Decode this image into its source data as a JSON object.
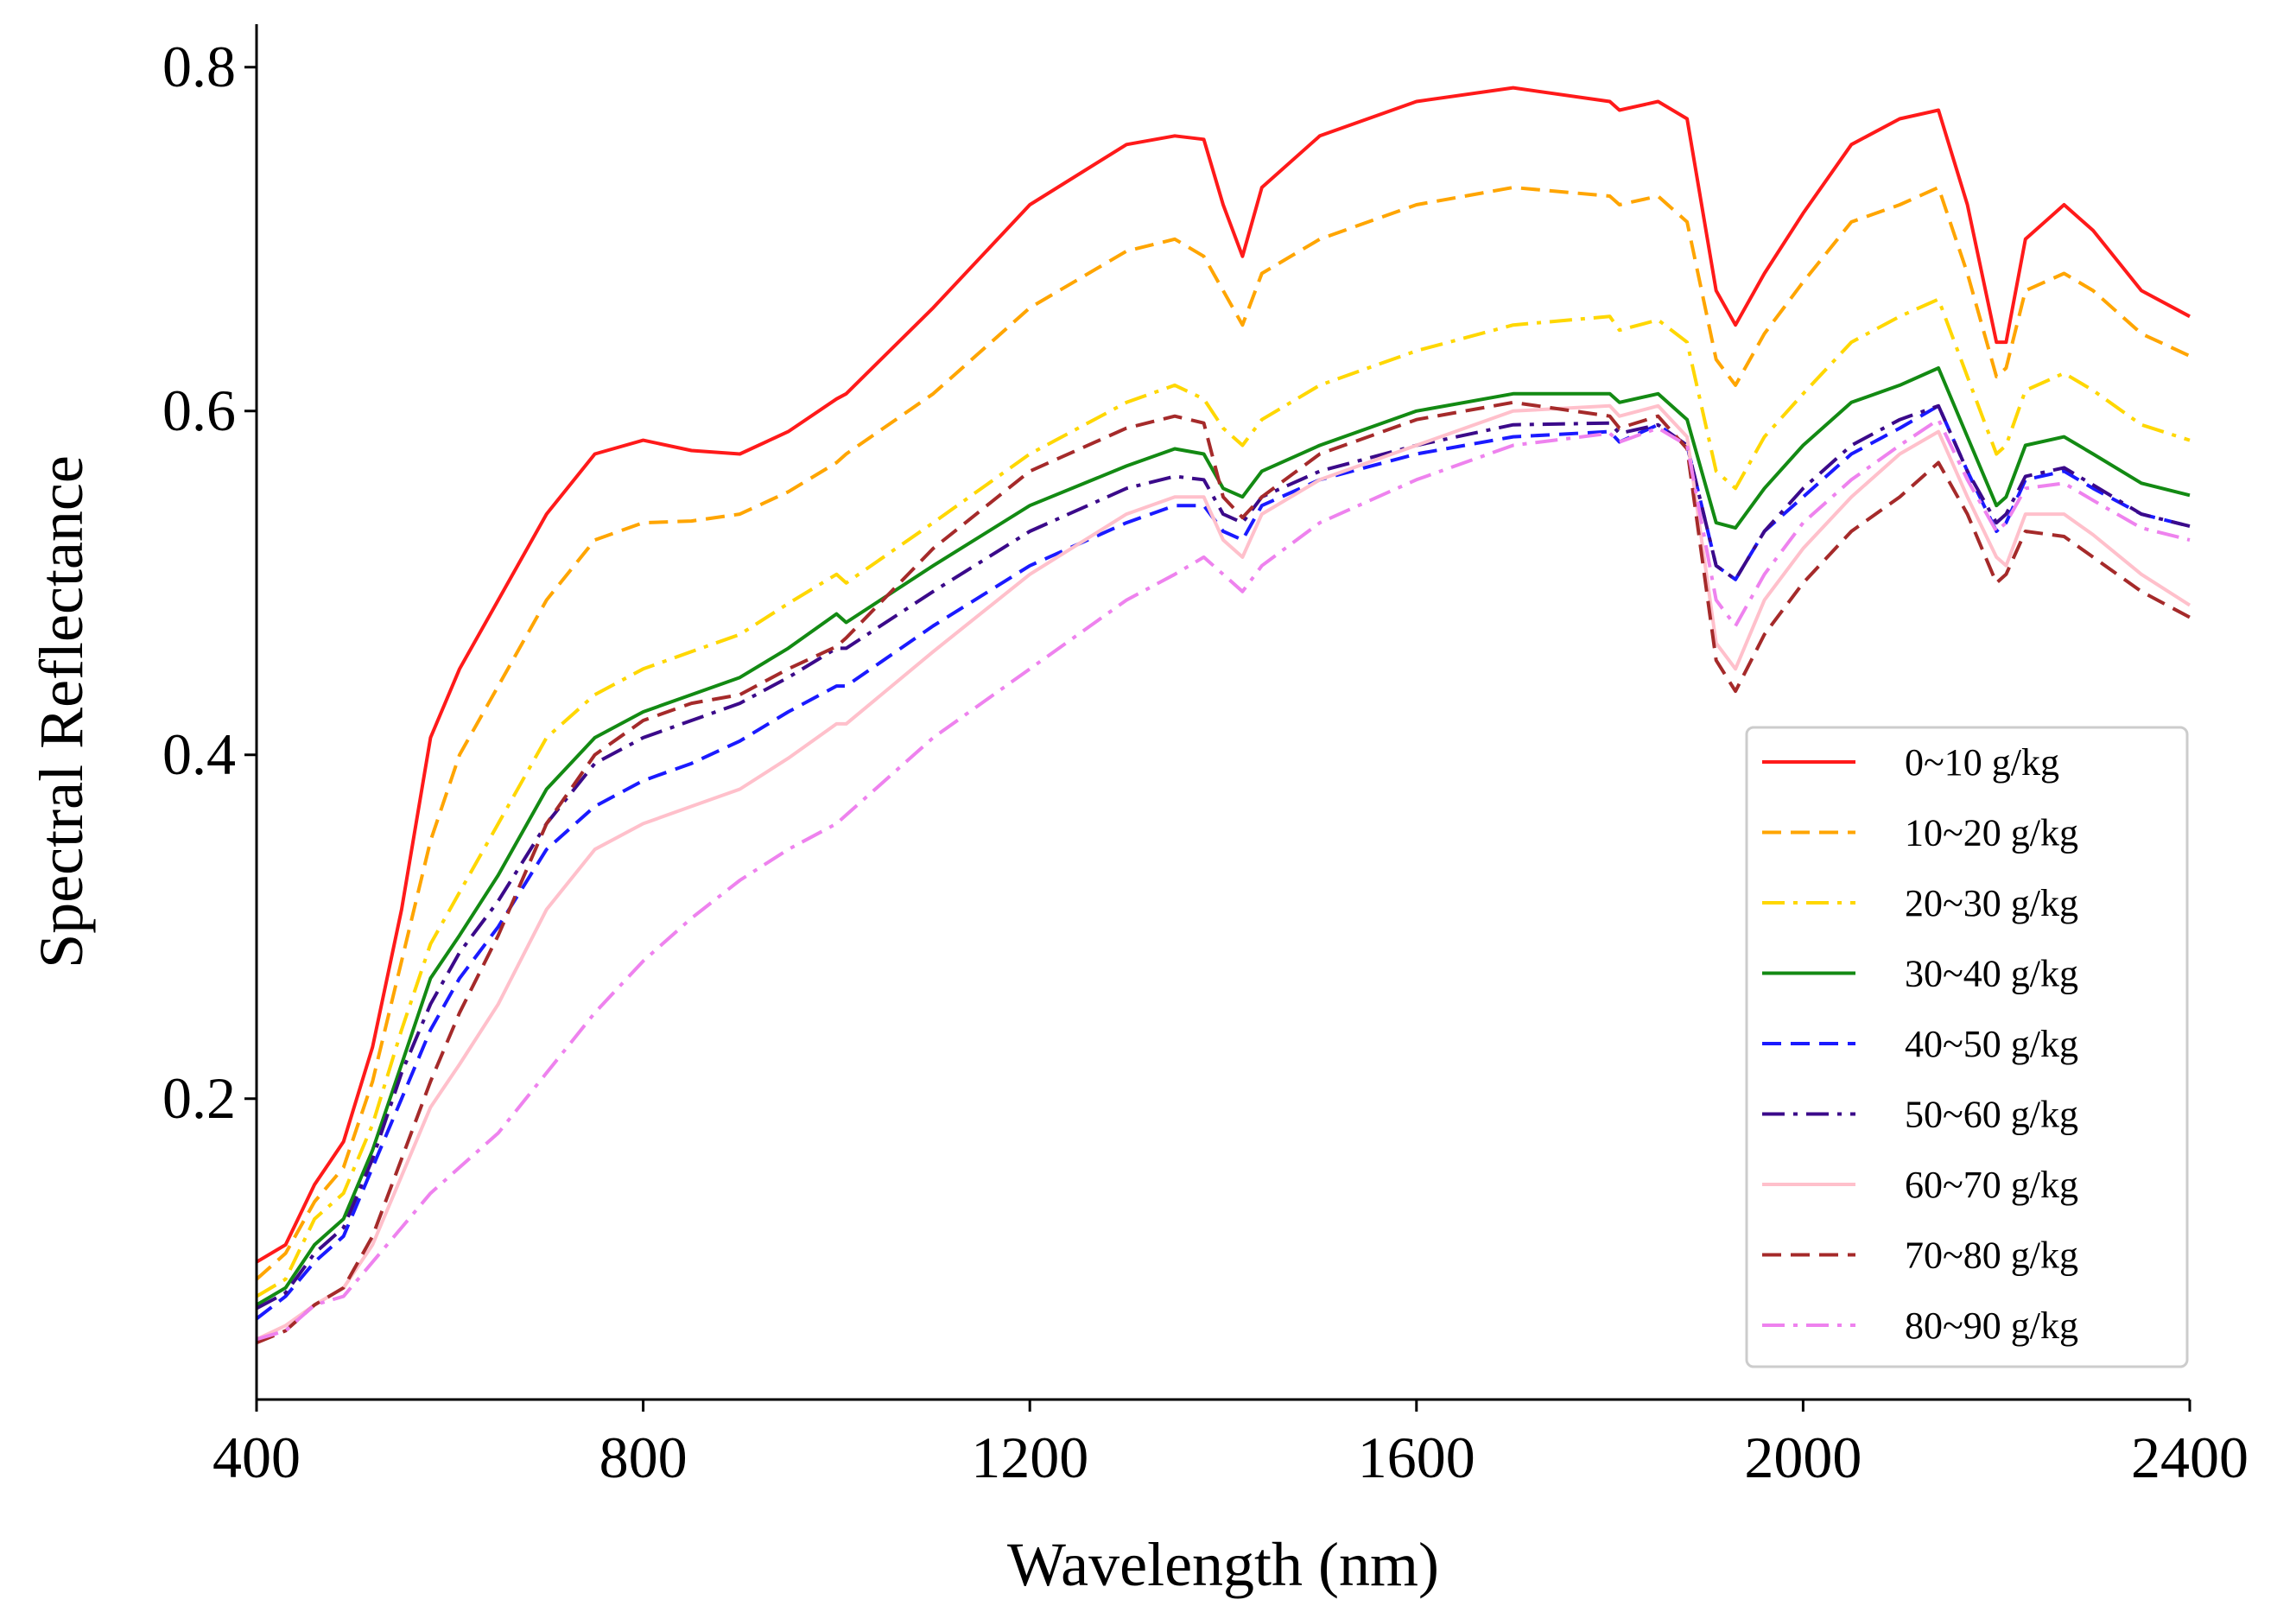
{
  "chart_data": {
    "type": "line",
    "title": "",
    "xlabel": "Wavelength (nm)",
    "ylabel": "Spectral Reflectance",
    "xlim": [
      400,
      2400
    ],
    "ylim": [
      0.025,
      0.825
    ],
    "xticks": [
      400,
      800,
      1200,
      1600,
      2000,
      2400
    ],
    "xtick_labels": [
      "400",
      "800",
      "1200",
      "1600",
      "2000",
      "2400"
    ],
    "yticks": [
      0.2,
      0.4,
      0.6,
      0.8
    ],
    "ytick_labels": [
      "0.2",
      "0.4",
      "0.6",
      "0.8"
    ],
    "grid": false,
    "legend_position": "lower-right",
    "x": [
      400,
      430,
      460,
      490,
      520,
      550,
      580,
      610,
      650,
      700,
      750,
      800,
      850,
      900,
      950,
      1000,
      1010,
      1100,
      1200,
      1300,
      1350,
      1380,
      1400,
      1420,
      1440,
      1500,
      1600,
      1700,
      1800,
      1810,
      1850,
      1880,
      1910,
      1930,
      1960,
      2000,
      2050,
      2100,
      2140,
      2170,
      2200,
      2210,
      2230,
      2270,
      2300,
      2350,
      2400
    ],
    "series": [
      {
        "name": "0~10 g/kg",
        "color": "#ff1a1a",
        "dash": "solid",
        "values": [
          0.105,
          0.115,
          0.15,
          0.175,
          0.23,
          0.31,
          0.41,
          0.45,
          0.49,
          0.54,
          0.575,
          0.583,
          0.577,
          0.575,
          0.588,
          0.607,
          0.61,
          0.66,
          0.72,
          0.755,
          0.76,
          0.758,
          0.72,
          0.69,
          0.73,
          0.76,
          0.78,
          0.788,
          0.78,
          0.775,
          0.78,
          0.77,
          0.67,
          0.65,
          0.68,
          0.715,
          0.755,
          0.77,
          0.775,
          0.72,
          0.64,
          0.64,
          0.7,
          0.72,
          0.705,
          0.67,
          0.655
        ]
      },
      {
        "name": "10~20 g/kg",
        "color": "#ffa500",
        "dash": "dashed",
        "values": [
          0.095,
          0.11,
          0.14,
          0.16,
          0.21,
          0.28,
          0.35,
          0.4,
          0.44,
          0.49,
          0.525,
          0.535,
          0.536,
          0.54,
          0.553,
          0.57,
          0.575,
          0.61,
          0.66,
          0.693,
          0.7,
          0.69,
          0.67,
          0.65,
          0.68,
          0.7,
          0.72,
          0.73,
          0.725,
          0.72,
          0.725,
          0.71,
          0.63,
          0.615,
          0.645,
          0.675,
          0.71,
          0.72,
          0.73,
          0.68,
          0.62,
          0.625,
          0.67,
          0.68,
          0.67,
          0.645,
          0.632
        ]
      },
      {
        "name": "20~30 g/kg",
        "color": "#ffd700",
        "dash": "dashdot",
        "values": [
          0.085,
          0.095,
          0.13,
          0.145,
          0.185,
          0.24,
          0.29,
          0.32,
          0.36,
          0.41,
          0.435,
          0.45,
          0.46,
          0.47,
          0.488,
          0.505,
          0.5,
          0.535,
          0.575,
          0.605,
          0.615,
          0.607,
          0.59,
          0.58,
          0.595,
          0.615,
          0.635,
          0.65,
          0.655,
          0.647,
          0.653,
          0.64,
          0.565,
          0.555,
          0.585,
          0.61,
          0.64,
          0.655,
          0.665,
          0.62,
          0.575,
          0.58,
          0.612,
          0.622,
          0.612,
          0.592,
          0.583
        ]
      },
      {
        "name": "30~40 g/kg",
        "color": "#138a13",
        "dash": "solid",
        "values": [
          0.08,
          0.09,
          0.115,
          0.13,
          0.17,
          0.22,
          0.27,
          0.295,
          0.33,
          0.38,
          0.41,
          0.425,
          0.435,
          0.445,
          0.462,
          0.482,
          0.477,
          0.51,
          0.545,
          0.568,
          0.578,
          0.575,
          0.555,
          0.55,
          0.565,
          0.58,
          0.6,
          0.61,
          0.61,
          0.605,
          0.61,
          0.595,
          0.535,
          0.532,
          0.555,
          0.58,
          0.605,
          0.615,
          0.625,
          0.585,
          0.545,
          0.55,
          0.58,
          0.585,
          0.575,
          0.558,
          0.551
        ]
      },
      {
        "name": "40~50 g/kg",
        "color": "#1a1aff",
        "dash": "dashed",
        "values": [
          0.072,
          0.085,
          0.105,
          0.12,
          0.16,
          0.2,
          0.24,
          0.27,
          0.3,
          0.345,
          0.37,
          0.385,
          0.395,
          0.408,
          0.425,
          0.44,
          0.44,
          0.475,
          0.51,
          0.535,
          0.545,
          0.545,
          0.53,
          0.525,
          0.545,
          0.56,
          0.575,
          0.585,
          0.588,
          0.582,
          0.592,
          0.58,
          0.51,
          0.502,
          0.53,
          0.55,
          0.575,
          0.59,
          0.603,
          0.565,
          0.53,
          0.535,
          0.56,
          0.565,
          0.555,
          0.54,
          0.533
        ]
      },
      {
        "name": "50~60 g/kg",
        "color": "#3b0a8a",
        "dash": "dashdot",
        "values": [
          0.078,
          0.087,
          0.11,
          0.125,
          0.165,
          0.215,
          0.255,
          0.285,
          0.315,
          0.36,
          0.395,
          0.41,
          0.42,
          0.43,
          0.445,
          0.462,
          0.462,
          0.495,
          0.53,
          0.555,
          0.562,
          0.56,
          0.54,
          0.535,
          0.55,
          0.565,
          0.58,
          0.592,
          0.593,
          0.587,
          0.592,
          0.58,
          0.51,
          0.502,
          0.53,
          0.555,
          0.58,
          0.595,
          0.603,
          0.565,
          0.535,
          0.54,
          0.562,
          0.567,
          0.557,
          0.54,
          0.533
        ]
      },
      {
        "name": "60~70 g/kg",
        "color": "#ffc0cb",
        "dash": "solid",
        "values": [
          0.06,
          0.068,
          0.08,
          0.09,
          0.115,
          0.155,
          0.195,
          0.22,
          0.255,
          0.31,
          0.345,
          0.36,
          0.37,
          0.38,
          0.398,
          0.418,
          0.418,
          0.46,
          0.505,
          0.54,
          0.55,
          0.55,
          0.525,
          0.515,
          0.54,
          0.56,
          0.58,
          0.6,
          0.603,
          0.597,
          0.603,
          0.585,
          0.465,
          0.45,
          0.49,
          0.52,
          0.55,
          0.575,
          0.588,
          0.55,
          0.515,
          0.51,
          0.54,
          0.54,
          0.528,
          0.505,
          0.487
        ]
      },
      {
        "name": "70~80 g/kg",
        "color": "#a52a2a",
        "dash": "dashed",
        "values": [
          0.058,
          0.065,
          0.08,
          0.09,
          0.12,
          0.165,
          0.21,
          0.25,
          0.295,
          0.36,
          0.4,
          0.42,
          0.43,
          0.435,
          0.45,
          0.463,
          0.468,
          0.52,
          0.565,
          0.59,
          0.597,
          0.593,
          0.55,
          0.538,
          0.55,
          0.575,
          0.595,
          0.605,
          0.597,
          0.59,
          0.597,
          0.578,
          0.455,
          0.437,
          0.47,
          0.5,
          0.53,
          0.55,
          0.57,
          0.54,
          0.5,
          0.505,
          0.53,
          0.527,
          0.515,
          0.495,
          0.48
        ]
      },
      {
        "name": "80~90 g/kg",
        "color": "#ee82ee",
        "dash": "dashdot",
        "values": [
          0.06,
          0.065,
          0.08,
          0.085,
          0.105,
          0.125,
          0.145,
          0.16,
          0.18,
          0.215,
          0.25,
          0.28,
          0.305,
          0.327,
          0.345,
          0.36,
          0.365,
          0.41,
          0.45,
          0.49,
          0.505,
          0.515,
          0.505,
          0.495,
          0.51,
          0.535,
          0.56,
          0.58,
          0.587,
          0.582,
          0.59,
          0.58,
          0.49,
          0.475,
          0.505,
          0.535,
          0.56,
          0.58,
          0.595,
          0.56,
          0.53,
          0.535,
          0.555,
          0.558,
          0.548,
          0.532,
          0.525
        ]
      }
    ]
  }
}
